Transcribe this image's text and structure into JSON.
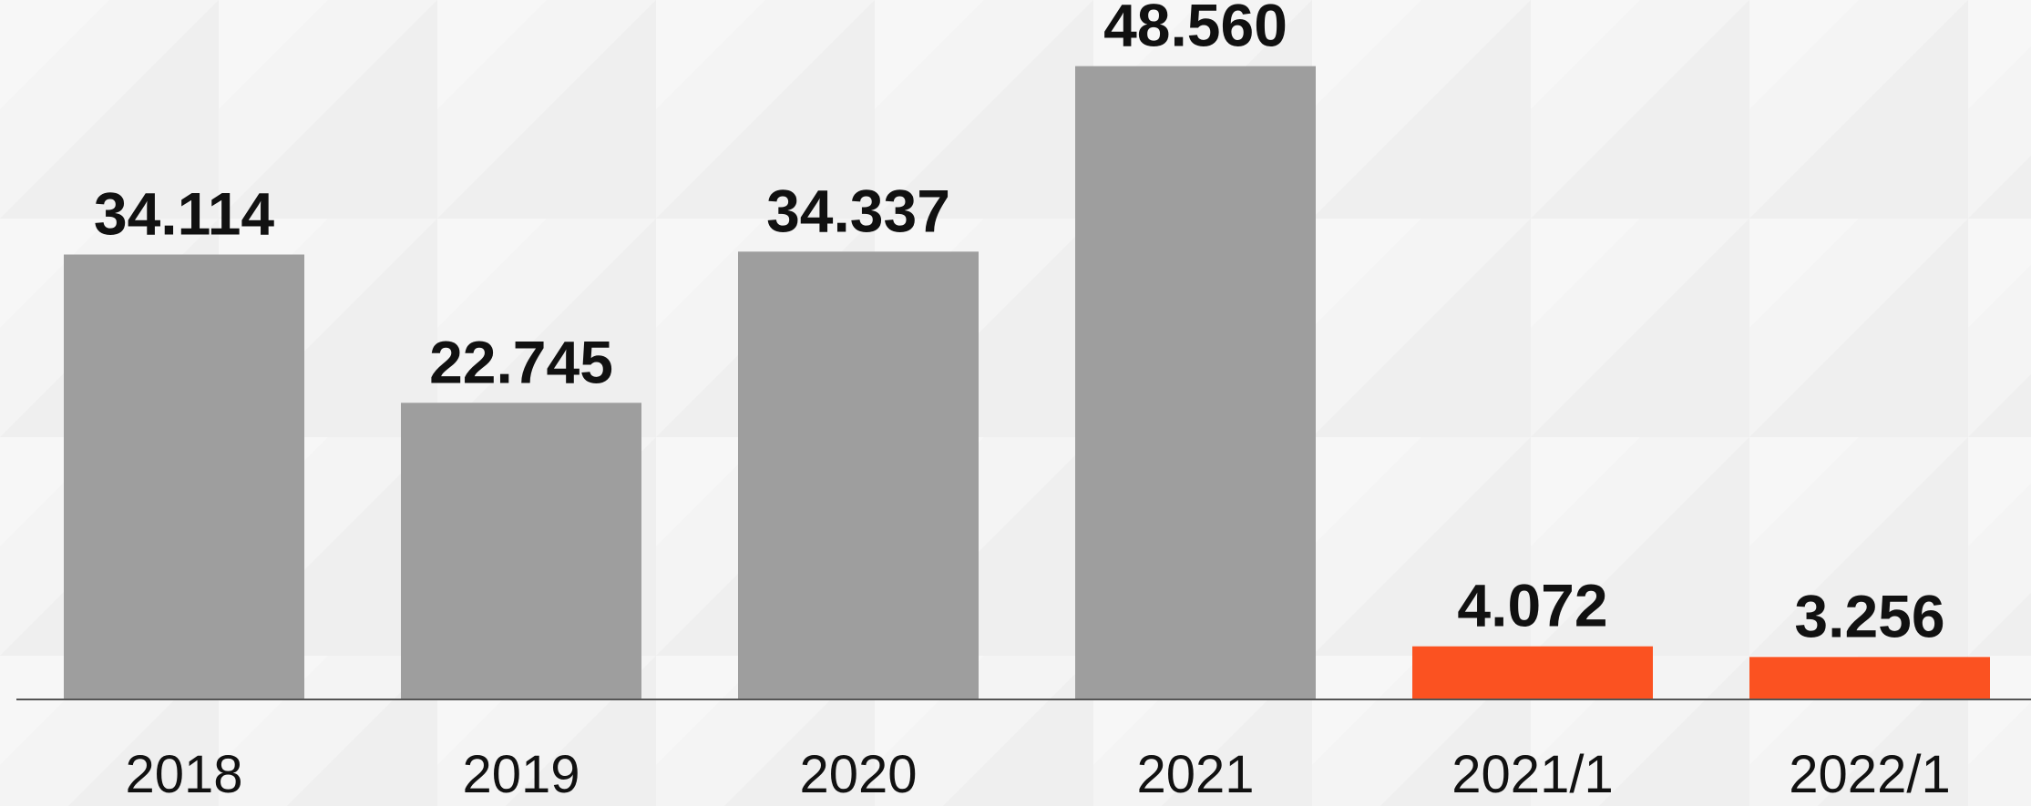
{
  "chart_data": {
    "type": "bar",
    "categories": [
      "2018",
      "2019",
      "2020",
      "2021",
      "2021/1",
      "2022/1"
    ],
    "values": [
      34114,
      22745,
      34337,
      48560,
      4072,
      3256
    ],
    "value_labels": [
      "34.114",
      "22.745",
      "34.337",
      "48.560",
      "4.072",
      "3.256"
    ],
    "ylim": [
      0,
      50000
    ],
    "grid": false,
    "legend": "none",
    "colors": {
      "annual": "#9e9e9e",
      "monthly": "#fb5221",
      "axis": "#555555",
      "background": "#f4f4f4"
    },
    "bar_color_keys": [
      "annual",
      "annual",
      "annual",
      "annual",
      "monthly",
      "monthly"
    ]
  }
}
